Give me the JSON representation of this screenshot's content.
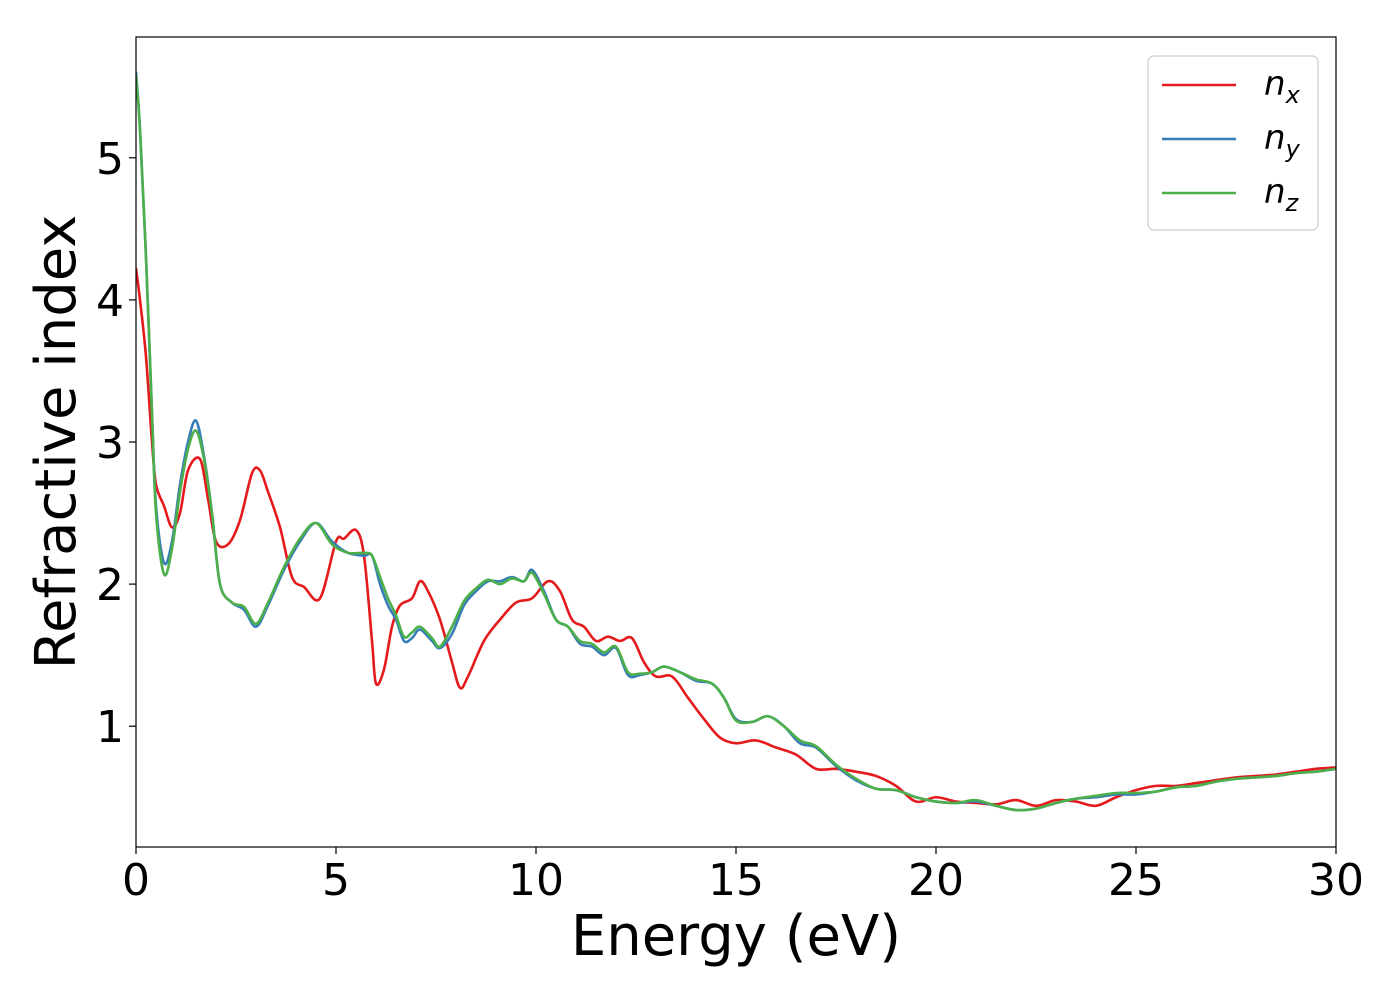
{
  "chart_data": {
    "type": "line",
    "xlabel": "Energy (eV)",
    "ylabel": "Refractive index",
    "xlim": [
      0,
      30
    ],
    "ylim": [
      0.15,
      5.85
    ],
    "xticks": [
      0,
      5,
      10,
      15,
      20,
      25,
      30
    ],
    "yticks": [
      1,
      2,
      3,
      4,
      5
    ],
    "grid": false,
    "legend_position": "top-right",
    "series": [
      {
        "name": "n_x",
        "base": "n",
        "sub": "x",
        "color": "#e41a1c",
        "x": [
          0,
          0.1,
          0.25,
          0.4,
          0.5,
          0.7,
          0.9,
          1.1,
          1.3,
          1.6,
          1.8,
          2.0,
          2.3,
          2.6,
          2.9,
          3.1,
          3.3,
          3.6,
          3.9,
          4.2,
          4.6,
          5.0,
          5.2,
          5.5,
          5.7,
          5.9,
          6.0,
          6.2,
          6.4,
          6.6,
          6.9,
          7.1,
          7.3,
          7.6,
          7.9,
          8.1,
          8.3,
          8.7,
          9.1,
          9.5,
          9.9,
          10.3,
          10.6,
          10.9,
          11.2,
          11.5,
          11.8,
          12.1,
          12.4,
          12.7,
          13.0,
          13.4,
          13.8,
          14.2,
          14.6,
          15.0,
          15.5,
          16.0,
          16.5,
          17.0,
          17.5,
          18.0,
          18.5,
          19.0,
          19.5,
          20.0,
          20.5,
          21.0,
          21.5,
          22.0,
          22.5,
          23.0,
          23.5,
          24.0,
          24.5,
          25.0,
          25.5,
          26.0,
          26.5,
          27.0,
          27.5,
          28.0,
          28.5,
          29.0,
          29.5,
          30.0
        ],
        "y": [
          4.22,
          4.0,
          3.6,
          3.0,
          2.7,
          2.55,
          2.4,
          2.5,
          2.8,
          2.88,
          2.6,
          2.3,
          2.28,
          2.45,
          2.78,
          2.8,
          2.65,
          2.4,
          2.05,
          1.98,
          1.9,
          2.3,
          2.32,
          2.38,
          2.2,
          1.6,
          1.3,
          1.4,
          1.7,
          1.85,
          1.9,
          2.02,
          1.95,
          1.75,
          1.45,
          1.27,
          1.35,
          1.6,
          1.75,
          1.87,
          1.9,
          2.02,
          1.95,
          1.75,
          1.7,
          1.6,
          1.63,
          1.6,
          1.62,
          1.45,
          1.35,
          1.35,
          1.2,
          1.05,
          0.92,
          0.88,
          0.9,
          0.85,
          0.8,
          0.7,
          0.7,
          0.68,
          0.65,
          0.58,
          0.47,
          0.5,
          0.47,
          0.46,
          0.45,
          0.48,
          0.44,
          0.48,
          0.47,
          0.44,
          0.5,
          0.55,
          0.58,
          0.58,
          0.6,
          0.62,
          0.64,
          0.65,
          0.66,
          0.68,
          0.7,
          0.71
        ]
      },
      {
        "name": "n_y",
        "base": "n",
        "sub": "y",
        "color": "#377eb8",
        "x": [
          0,
          0.1,
          0.25,
          0.4,
          0.5,
          0.7,
          0.9,
          1.1,
          1.3,
          1.5,
          1.7,
          1.9,
          2.1,
          2.4,
          2.7,
          3.0,
          3.3,
          3.7,
          4.1,
          4.5,
          4.9,
          5.3,
          5.7,
          5.9,
          6.1,
          6.3,
          6.5,
          6.7,
          6.9,
          7.1,
          7.4,
          7.6,
          7.9,
          8.2,
          8.5,
          8.8,
          9.1,
          9.4,
          9.7,
          9.9,
          10.2,
          10.5,
          10.8,
          11.1,
          11.4,
          11.7,
          12.0,
          12.3,
          12.6,
          12.9,
          13.2,
          13.6,
          14.0,
          14.4,
          14.7,
          15.0,
          15.4,
          15.8,
          16.2,
          16.6,
          17.0,
          17.5,
          18.0,
          18.5,
          19.0,
          19.5,
          20.0,
          20.5,
          21.0,
          21.5,
          22.0,
          22.5,
          23.0,
          23.5,
          24.0,
          24.5,
          25.0,
          25.5,
          26.0,
          26.5,
          27.0,
          27.5,
          28.0,
          28.5,
          29.0,
          29.5,
          30.0
        ],
        "y": [
          5.6,
          5.2,
          4.3,
          3.2,
          2.55,
          2.15,
          2.3,
          2.7,
          3.0,
          3.15,
          2.9,
          2.5,
          2.0,
          1.87,
          1.82,
          1.7,
          1.85,
          2.1,
          2.3,
          2.43,
          2.3,
          2.22,
          2.2,
          2.2,
          2.0,
          1.85,
          1.75,
          1.6,
          1.62,
          1.68,
          1.6,
          1.55,
          1.65,
          1.85,
          1.95,
          2.02,
          2.02,
          2.05,
          2.02,
          2.1,
          1.95,
          1.75,
          1.7,
          1.58,
          1.56,
          1.5,
          1.55,
          1.36,
          1.36,
          1.38,
          1.42,
          1.38,
          1.32,
          1.3,
          1.2,
          1.05,
          1.03,
          1.07,
          1.0,
          0.88,
          0.85,
          0.72,
          0.62,
          0.56,
          0.55,
          0.5,
          0.47,
          0.46,
          0.47,
          0.44,
          0.41,
          0.42,
          0.46,
          0.49,
          0.5,
          0.52,
          0.52,
          0.54,
          0.57,
          0.58,
          0.61,
          0.63,
          0.64,
          0.65,
          0.67,
          0.68,
          0.7
        ]
      },
      {
        "name": "n_z",
        "base": "n",
        "sub": "z",
        "color": "#4daf4a",
        "x": [
          0,
          0.1,
          0.25,
          0.4,
          0.5,
          0.7,
          0.9,
          1.1,
          1.3,
          1.5,
          1.7,
          1.9,
          2.1,
          2.4,
          2.7,
          3.0,
          3.3,
          3.7,
          4.1,
          4.5,
          4.9,
          5.3,
          5.7,
          5.9,
          6.1,
          6.3,
          6.5,
          6.7,
          6.9,
          7.1,
          7.4,
          7.6,
          7.9,
          8.2,
          8.5,
          8.8,
          9.1,
          9.4,
          9.7,
          9.9,
          10.2,
          10.5,
          10.8,
          11.1,
          11.4,
          11.7,
          12.0,
          12.3,
          12.6,
          12.9,
          13.2,
          13.6,
          14.0,
          14.4,
          14.7,
          15.0,
          15.4,
          15.8,
          16.2,
          16.6,
          17.0,
          17.5,
          18.0,
          18.5,
          19.0,
          19.5,
          20.0,
          20.5,
          21.0,
          21.5,
          22.0,
          22.5,
          23.0,
          23.5,
          24.0,
          24.5,
          25.0,
          25.5,
          26.0,
          26.5,
          27.0,
          27.5,
          28.0,
          28.5,
          29.0,
          29.5,
          30.0
        ],
        "y": [
          5.58,
          5.2,
          4.3,
          3.2,
          2.5,
          2.07,
          2.25,
          2.65,
          2.95,
          3.08,
          2.88,
          2.5,
          2.0,
          1.87,
          1.84,
          1.72,
          1.87,
          2.12,
          2.32,
          2.43,
          2.28,
          2.22,
          2.22,
          2.2,
          2.05,
          1.9,
          1.78,
          1.63,
          1.66,
          1.7,
          1.62,
          1.56,
          1.7,
          1.88,
          1.97,
          2.03,
          2.0,
          2.04,
          2.02,
          2.08,
          1.93,
          1.75,
          1.7,
          1.6,
          1.58,
          1.52,
          1.56,
          1.38,
          1.37,
          1.38,
          1.42,
          1.38,
          1.33,
          1.3,
          1.2,
          1.04,
          1.03,
          1.07,
          1.0,
          0.9,
          0.86,
          0.73,
          0.63,
          0.56,
          0.55,
          0.5,
          0.47,
          0.46,
          0.48,
          0.44,
          0.41,
          0.42,
          0.46,
          0.49,
          0.51,
          0.53,
          0.53,
          0.54,
          0.57,
          0.58,
          0.61,
          0.63,
          0.64,
          0.65,
          0.67,
          0.68,
          0.7
        ]
      }
    ]
  }
}
